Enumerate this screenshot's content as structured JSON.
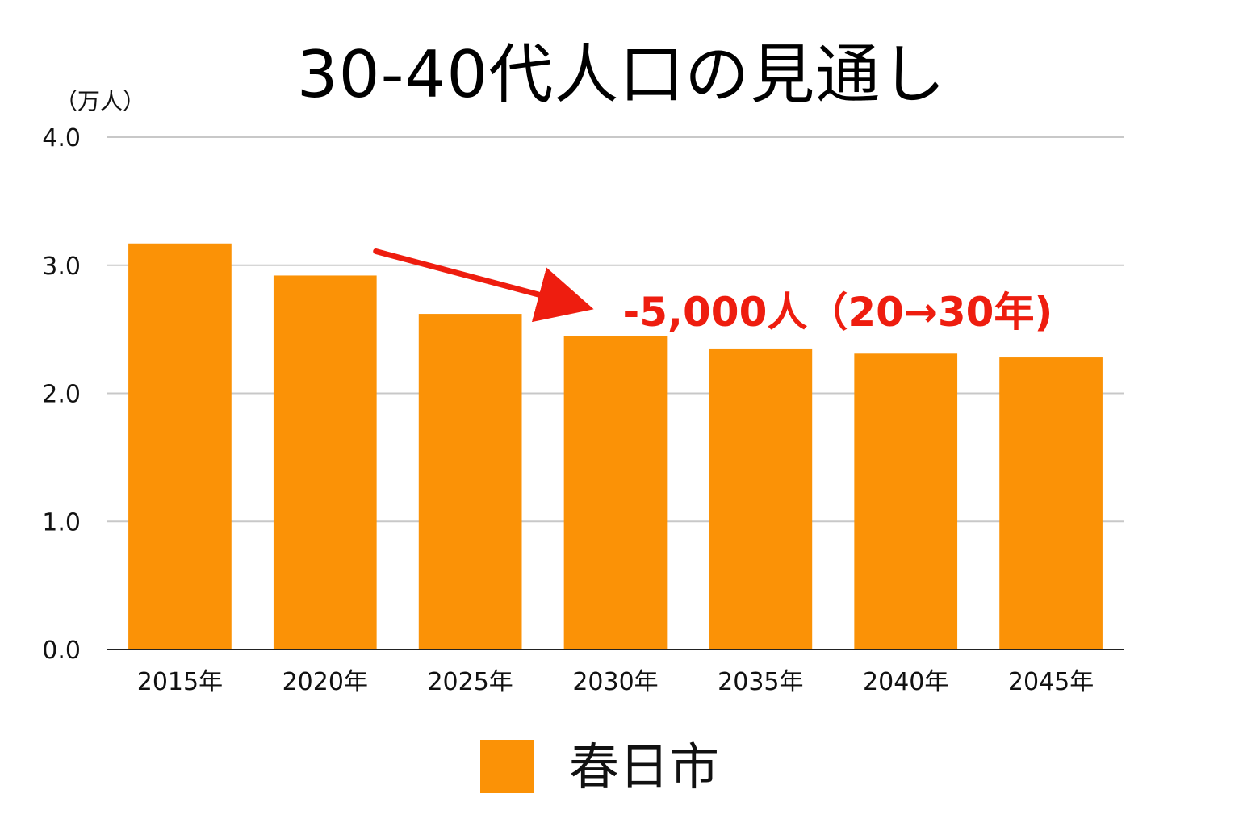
{
  "chart_data": {
    "type": "bar",
    "title": "30-40代人口の見通し",
    "y_unit": "（万人）",
    "categories": [
      "2015年",
      "2020年",
      "2025年",
      "2030年",
      "2035年",
      "2040年",
      "2045年"
    ],
    "series": [
      {
        "name": "春日市",
        "values": [
          3.17,
          2.92,
          2.62,
          2.45,
          2.35,
          2.31,
          2.28
        ],
        "color": "#fb9206"
      }
    ],
    "ylim": [
      0,
      4
    ],
    "yticks": [
      "0.0",
      "1.0",
      "2.0",
      "3.0",
      "4.0"
    ],
    "grid": true,
    "legend_position": "bottom",
    "annotation": {
      "text": "-5,000人（20→30年)",
      "color": "#ee1d0f",
      "from_category": "2020年",
      "to_category": "2030年"
    }
  }
}
